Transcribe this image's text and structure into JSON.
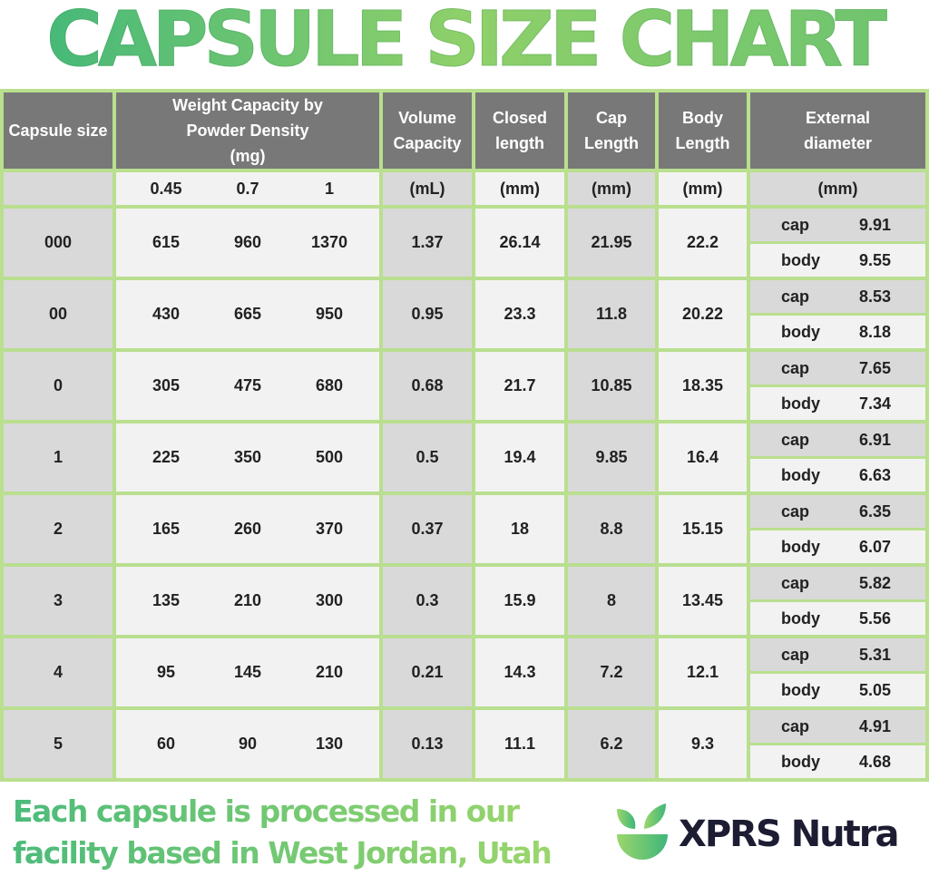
{
  "title": "CAPSULE SIZE CHART",
  "colors": {
    "border": "#b9df8f",
    "header": "#787878",
    "dark_cell": "#d9d9d9",
    "light_cell": "#f2f2f2",
    "brand_green": "#6cc36f",
    "brand_navy": "#1c1d33"
  },
  "chart_data": {
    "type": "table",
    "headers": [
      "Capsule size",
      "Weight Capacity by Powder Density (mg)",
      "Volume Capacity",
      "Closed length",
      "Cap Length",
      "Body Length",
      "External diameter"
    ],
    "units": {
      "density": [
        "0.45",
        "0.7",
        "1"
      ],
      "volume": "(mL)",
      "closed": "(mm)",
      "cap": "(mm)",
      "body": "(mm)",
      "ext": "(mm)"
    },
    "ext_labels": {
      "cap": "cap",
      "body": "body"
    },
    "rows": [
      {
        "size": "000",
        "w": [
          "615",
          "960",
          "1370"
        ],
        "vol": "1.37",
        "closed": "26.14",
        "cap": "21.95",
        "body": "22.2",
        "d_cap": "9.91",
        "d_body": "9.55"
      },
      {
        "size": "00",
        "w": [
          "430",
          "665",
          "950"
        ],
        "vol": "0.95",
        "closed": "23.3",
        "cap": "11.8",
        "body": "20.22",
        "d_cap": "8.53",
        "d_body": "8.18"
      },
      {
        "size": "0",
        "w": [
          "305",
          "475",
          "680"
        ],
        "vol": "0.68",
        "closed": "21.7",
        "cap": "10.85",
        "body": "18.35",
        "d_cap": "7.65",
        "d_body": "7.34"
      },
      {
        "size": "1",
        "w": [
          "225",
          "350",
          "500"
        ],
        "vol": "0.5",
        "closed": "19.4",
        "cap": "9.85",
        "body": "16.4",
        "d_cap": "6.91",
        "d_body": "6.63"
      },
      {
        "size": "2",
        "w": [
          "165",
          "260",
          "370"
        ],
        "vol": "0.37",
        "closed": "18",
        "cap": "8.8",
        "body": "15.15",
        "d_cap": "6.35",
        "d_body": "6.07"
      },
      {
        "size": "3",
        "w": [
          "135",
          "210",
          "300"
        ],
        "vol": "0.3",
        "closed": "15.9",
        "cap": "8",
        "body": "13.45",
        "d_cap": "5.82",
        "d_body": "5.56"
      },
      {
        "size": "4",
        "w": [
          "95",
          "145",
          "210"
        ],
        "vol": "0.21",
        "closed": "14.3",
        "cap": "7.2",
        "body": "12.1",
        "d_cap": "5.31",
        "d_body": "5.05"
      },
      {
        "size": "5",
        "w": [
          "60",
          "90",
          "130"
        ],
        "vol": "0.13",
        "closed": "11.1",
        "cap": "6.2",
        "body": "9.3",
        "d_cap": "4.91",
        "d_body": "4.68"
      }
    ]
  },
  "footer": {
    "line1": "Each capsule is processed in our",
    "line2": "facility based in West Jordan, Utah"
  },
  "brand": {
    "name": "XPRS Nutra",
    "logo_icon": "bowl-leaves-icon"
  }
}
